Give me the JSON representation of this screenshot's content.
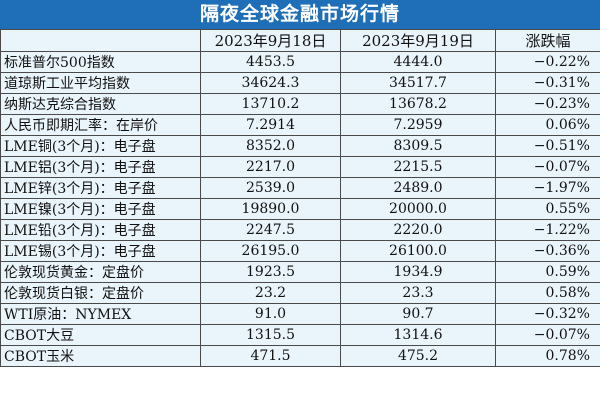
{
  "title": "隔夜全球金融市场行情",
  "headers": [
    "",
    "2023年9月18日",
    "2023年9月19日",
    "涨跌幅"
  ],
  "rows": [
    {
      "name": "标准普尔500指数",
      "d18": "4453.5",
      "d19": "4444.0",
      "chg": "−0.22%"
    },
    {
      "name": "道琼斯工业平均指数",
      "d18": "34624.3",
      "d19": "34517.7",
      "chg": "−0.31%"
    },
    {
      "name": "纳斯达克综合指数",
      "d18": "13710.2",
      "d19": "13678.2",
      "chg": "−0.23%"
    },
    {
      "name": "人民币即期汇率：在岸价",
      "d18": "7.2914",
      "d19": "7.2959",
      "chg": "0.06%"
    },
    {
      "name": "LME铜(3个月)：电子盘",
      "d18": "8352.0",
      "d19": "8309.5",
      "chg": "−0.51%"
    },
    {
      "name": "LME铝(3个月)：电子盘",
      "d18": "2217.0",
      "d19": "2215.5",
      "chg": "−0.07%"
    },
    {
      "name": "LME锌(3个月)：电子盘",
      "d18": "2539.0",
      "d19": "2489.0",
      "chg": "−1.97%"
    },
    {
      "name": "LME镍(3个月)：电子盘",
      "d18": "19890.0",
      "d19": "20000.0",
      "chg": "0.55%"
    },
    {
      "name": "LME铅(3个月)：电子盘",
      "d18": "2247.5",
      "d19": "2220.0",
      "chg": "−1.22%"
    },
    {
      "name": "LME锡(3个月)：电子盘",
      "d18": "26195.0",
      "d19": "26100.0",
      "chg": "−0.36%"
    },
    {
      "name": "伦敦现货黄金：定盘价",
      "d18": "1923.5",
      "d19": "1934.9",
      "chg": "0.59%"
    },
    {
      "name": "伦敦现货白银：定盘价",
      "d18": "23.2",
      "d19": "23.3",
      "chg": "0.58%"
    },
    {
      "name": "WTI原油：NYMEX",
      "d18": "91.0",
      "d19": "90.7",
      "chg": "−0.32%"
    },
    {
      "name": "CBOT大豆",
      "d18": "1315.5",
      "d19": "1314.6",
      "chg": "−0.07%"
    },
    {
      "name": "CBOT玉米",
      "d18": "471.5",
      "d19": "475.2",
      "chg": "0.78%"
    }
  ]
}
